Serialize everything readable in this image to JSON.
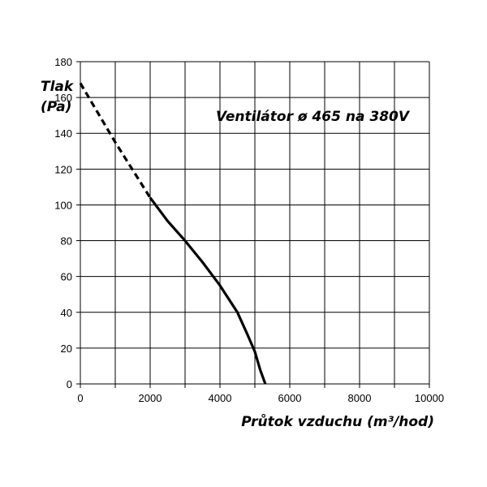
{
  "chart_data": {
    "type": "line",
    "title": "Ventilátor ø 465 na 380V",
    "xlabel": "Průtok vzduchu (m³/hod)",
    "ylabel_line1": "Tlak",
    "ylabel_line2": "(Pa)",
    "xlim": [
      0,
      10000
    ],
    "ylim": [
      0,
      180
    ],
    "xticks": [
      0,
      2000,
      4000,
      6000,
      8000,
      10000
    ],
    "yticks": [
      0,
      20,
      40,
      60,
      80,
      100,
      120,
      140,
      160,
      180
    ],
    "grid": true,
    "grid_x_step": 1000,
    "grid_y_step": 20,
    "series": [
      {
        "style": "dashed",
        "color": "#000000",
        "x": [
          0,
          1000,
          2000
        ],
        "y": [
          168,
          135,
          104
        ]
      },
      {
        "style": "solid",
        "color": "#000000",
        "x": [
          2000,
          2500,
          3000,
          3500,
          4000,
          4500,
          4800,
          5000,
          5150,
          5300
        ],
        "y": [
          104,
          91,
          80,
          68,
          55,
          40,
          27,
          18,
          8,
          0
        ]
      }
    ]
  }
}
